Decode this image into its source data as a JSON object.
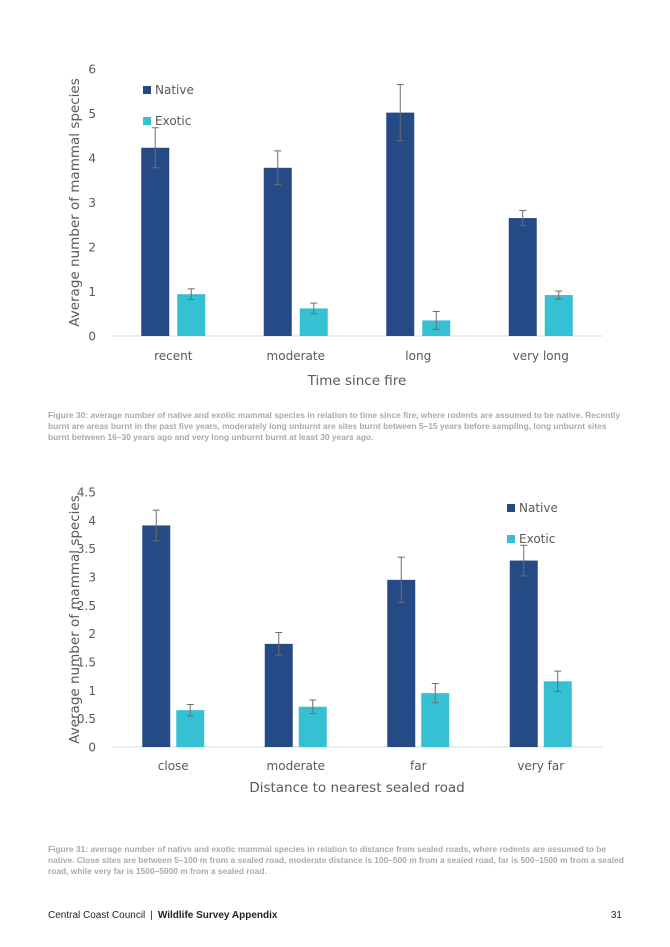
{
  "charts": [
    {
      "type": "bar",
      "categories": [
        "recent",
        "moderate",
        "long",
        "very long"
      ],
      "series": [
        {
          "name": "Native",
          "color": "#264a86",
          "values": [
            4.23,
            3.78,
            5.02,
            2.65
          ],
          "errors": [
            0.45,
            0.38,
            0.63,
            0.17
          ]
        },
        {
          "name": "Exotic",
          "color": "#36c0d3",
          "values": [
            0.94,
            0.62,
            0.35,
            0.92
          ],
          "errors": [
            0.12,
            0.12,
            0.2,
            0.09
          ]
        }
      ],
      "title": "",
      "xlabel": "Time since fire",
      "ylabel": "Average number of mammal species",
      "ylim": [
        0,
        6
      ],
      "yticks": [
        "0",
        "1",
        "2",
        "3",
        "4",
        "5",
        "6"
      ],
      "grid": false,
      "legend": "top-left"
    },
    {
      "type": "bar",
      "categories": [
        "close",
        "moderate",
        "far",
        "very far"
      ],
      "series": [
        {
          "name": "Native",
          "color": "#264a86",
          "values": [
            3.91,
            1.82,
            2.95,
            3.29
          ],
          "errors": [
            0.27,
            0.2,
            0.4,
            0.27
          ]
        },
        {
          "name": "Exotic",
          "color": "#36c0d3",
          "values": [
            0.65,
            0.71,
            0.95,
            1.16
          ],
          "errors": [
            0.1,
            0.12,
            0.17,
            0.18
          ]
        }
      ],
      "title": "",
      "xlabel": "Distance to nearest sealed road",
      "ylabel": "Average number of mammal species",
      "ylim": [
        0,
        4.5
      ],
      "yticks": [
        "0",
        "0.5",
        "1",
        "1.5",
        "2",
        "2.5",
        "3",
        "3.5",
        "4",
        "4.5"
      ],
      "grid": false,
      "legend": "top-right"
    }
  ],
  "captions": [
    "Figure 30: average number of native and exotic mammal species in relation to time since fire, where rodents are assumed to be native. Recently burnt are areas burnt in the past five years, moderately long unburnt are sites burnt between 5–15 years before sampling, long unburnt sites burnt between 16–30 years ago and very long unburnt burnt at least 30 years ago.",
    "Figure 31: average number of native and exotic mammal species in relation to distance from sealed roads, where rodents are assumed to be native. Close sites are between 5–100 m from a sealed road, moderate distance is 100–500 m from a sealed road, far is 500–1500 m from a sealed road, while very far is 1500–5000 m from a sealed road."
  ],
  "footer": {
    "organisation": "Central Coast Council",
    "separator": "|",
    "document": "Wildlife Survey Appendix",
    "page_number": "31"
  }
}
